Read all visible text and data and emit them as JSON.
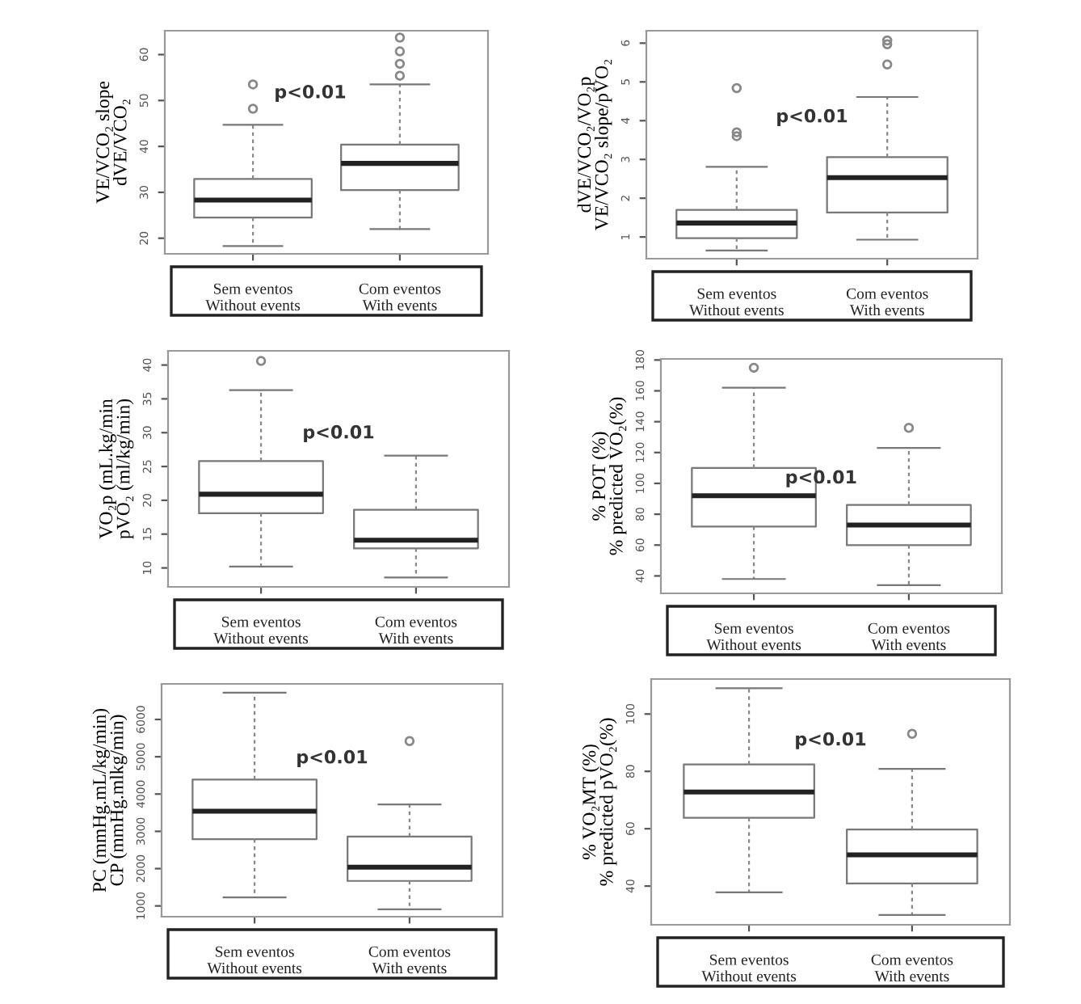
{
  "chart_data": [
    {
      "type": "box",
      "categories": [
        "Sem eventos\nWithout events",
        "Com eventos\nWith events"
      ],
      "ylabel": "VE/VCO₂ slope\ndVE/VCO₂",
      "ylim": [
        16.6,
        65.2
      ],
      "yticks": [
        20,
        30,
        40,
        50,
        60
      ],
      "annotations": [
        "p<0.01"
      ],
      "boxes": [
        {
          "low": 18.3,
          "q1": 24.5,
          "median": 28.3,
          "q3": 32.9,
          "high": 44.7,
          "outliers": [
            48.2,
            53.5
          ]
        },
        {
          "low": 22.0,
          "q1": 30.5,
          "median": 36.3,
          "q3": 40.4,
          "high": 53.5,
          "outliers": [
            55.4,
            58.0,
            60.7,
            63.7
          ]
        }
      ]
    },
    {
      "type": "box",
      "categories": [
        "Sem eventos\nWithout events",
        "Com eventos\nWith events"
      ],
      "ylabel": "dVE/VCO₂/VO₂p\nVE/VCO₂ slope/pVO₂",
      "ylim": [
        0.44,
        6.32
      ],
      "yticks": [
        1,
        2,
        3,
        4,
        5,
        6
      ],
      "annotations": [
        "p<0.01"
      ],
      "boxes": [
        {
          "low": 0.65,
          "q1": 0.97,
          "median": 1.36,
          "q3": 1.7,
          "high": 2.81,
          "outliers": [
            3.6,
            3.7,
            4.84
          ]
        },
        {
          "low": 0.93,
          "q1": 1.63,
          "median": 2.53,
          "q3": 3.06,
          "high": 4.61,
          "outliers": [
            5.45,
            5.97,
            6.07
          ]
        }
      ]
    },
    {
      "type": "box",
      "categories": [
        "Sem eventos\nWithout events",
        "Com eventos\nWith events"
      ],
      "ylabel": "VO₂p (mL.kg/min\npVO₂ (ml/kg/min)",
      "ylim": [
        7.2,
        42.1
      ],
      "yticks": [
        10,
        15,
        20,
        25,
        30,
        35,
        40
      ],
      "annotations": [
        "p<0.01"
      ],
      "boxes": [
        {
          "low": 10.2,
          "q1": 18.1,
          "median": 20.9,
          "q3": 25.8,
          "high": 36.3,
          "outliers": [
            40.6
          ]
        },
        {
          "low": 8.6,
          "q1": 12.9,
          "median": 14.1,
          "q3": 18.6,
          "high": 26.6
        }
      ]
    },
    {
      "type": "box",
      "categories": [
        "Sem eventos\nWithout events",
        "Com eventos\nWith events"
      ],
      "ylabel": "% POT (%)\n% predicted VO₂(%)",
      "ylim": [
        28.7,
        180.7
      ],
      "yticks": [
        40,
        60,
        80,
        100,
        120,
        140,
        160,
        180
      ],
      "annotations": [
        "p<0.01"
      ],
      "boxes": [
        {
          "low": 38,
          "q1": 72,
          "median": 92,
          "q3": 110,
          "high": 162,
          "outliers": [
            175
          ]
        },
        {
          "low": 34,
          "q1": 60,
          "median": 73,
          "q3": 86,
          "high": 123,
          "outliers": [
            136
          ]
        }
      ]
    },
    {
      "type": "box",
      "categories": [
        "Sem eventos\nWithout events",
        "Com eventos\nWith events"
      ],
      "ylabel": "PC (mmHg.mL/kg/min)\nCP (mmHg.mlkg/min)",
      "ylim": [
        711,
        6954
      ],
      "yticks": [
        1000,
        2000,
        3000,
        4000,
        5000,
        6000
      ],
      "annotations": [
        "p<0.01"
      ],
      "boxes": [
        {
          "low": 1230,
          "q1": 2790,
          "median": 3540,
          "q3": 4390,
          "high": 6720
        },
        {
          "low": 910,
          "q1": 1670,
          "median": 2040,
          "q3": 2860,
          "high": 3720,
          "outliers": [
            5420
          ]
        }
      ]
    },
    {
      "type": "box",
      "categories": [
        "Sem eventos\nWithout events",
        "Com eventos\nWith events"
      ],
      "ylabel": "% VO₂MT (%)\n% predicted pVO₂(%)",
      "ylim": [
        26.5,
        112.2
      ],
      "yticks": [
        40,
        60,
        80,
        100
      ],
      "annotations": [
        "p<0.01"
      ],
      "boxes": [
        {
          "low": 37.8,
          "q1": 63.8,
          "median": 72.8,
          "q3": 82.4,
          "high": 109
        },
        {
          "low": 29.9,
          "q1": 40.9,
          "median": 50.9,
          "q3": 59.7,
          "high": 80.9,
          "outliers": [
            93.1
          ]
        }
      ]
    }
  ]
}
